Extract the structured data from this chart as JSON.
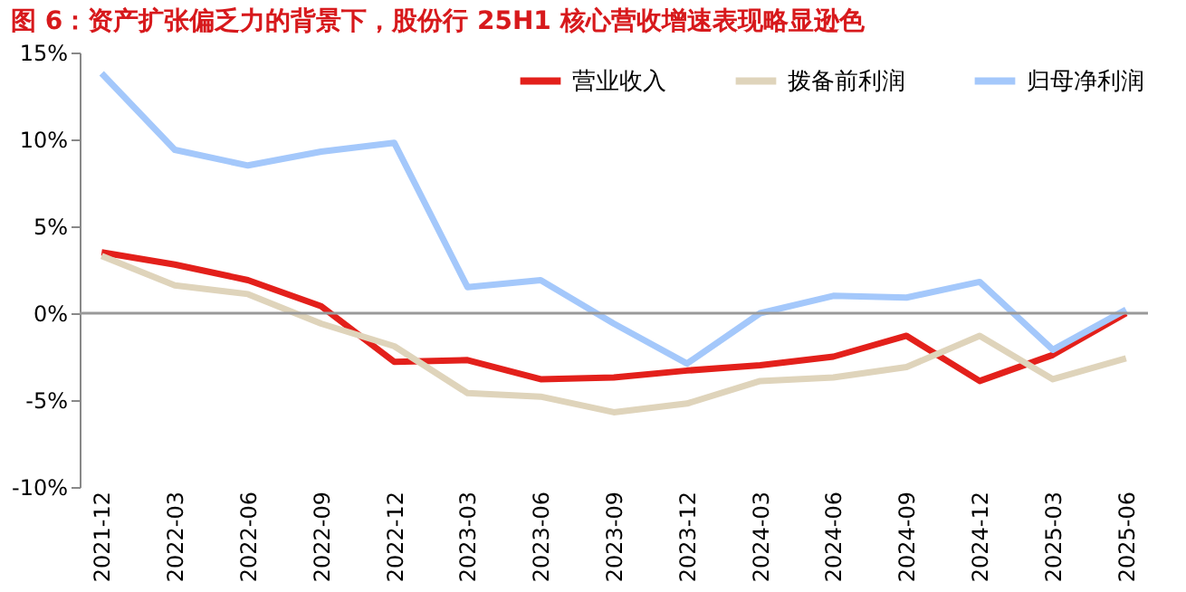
{
  "chart_data": {
    "type": "line",
    "title": "图 6：资产扩张偏乏力的背景下，股份行 25H1 核心营收增速表现略显逊色",
    "categories": [
      "2021-12",
      "2022-03",
      "2022-06",
      "2022-09",
      "2022-12",
      "2023-03",
      "2023-06",
      "2023-09",
      "2023-12",
      "2024-03",
      "2024-06",
      "2024-09",
      "2024-12",
      "2025-03",
      "2025-06"
    ],
    "series": [
      {
        "name": "营业收入",
        "color": "#e3201b",
        "values": [
          3.5,
          2.8,
          1.9,
          0.4,
          -2.8,
          -2.7,
          -3.8,
          -3.7,
          -3.3,
          -3.0,
          -2.5,
          -1.3,
          -3.9,
          -2.4,
          0.0
        ]
      },
      {
        "name": "拨备前利润",
        "color": "#dfd4bb",
        "values": [
          3.3,
          1.6,
          1.1,
          -0.6,
          -1.9,
          -4.6,
          -4.8,
          -5.7,
          -5.2,
          -3.9,
          -3.7,
          -3.1,
          -1.3,
          -3.8,
          -2.6
        ]
      },
      {
        "name": "归母净利润",
        "color": "#a4c8fb",
        "values": [
          13.8,
          9.4,
          8.5,
          9.3,
          9.8,
          1.5,
          1.9,
          -0.6,
          -2.9,
          0.0,
          1.0,
          0.9,
          1.8,
          -2.1,
          0.2
        ]
      }
    ],
    "ylim": [
      -10,
      15
    ],
    "yticks": [
      {
        "value": -10,
        "label": "-10%"
      },
      {
        "value": -5,
        "label": "-5%"
      },
      {
        "value": 0,
        "label": "0%"
      },
      {
        "value": 5,
        "label": "5%"
      },
      {
        "value": 10,
        "label": "10%"
      },
      {
        "value": 15,
        "label": "15%"
      }
    ],
    "ref_lines": [
      {
        "axis": "y",
        "value": 0,
        "color": "#999999"
      }
    ],
    "grid": false,
    "legend": "top right",
    "marker": "none",
    "line_style": "solid"
  }
}
